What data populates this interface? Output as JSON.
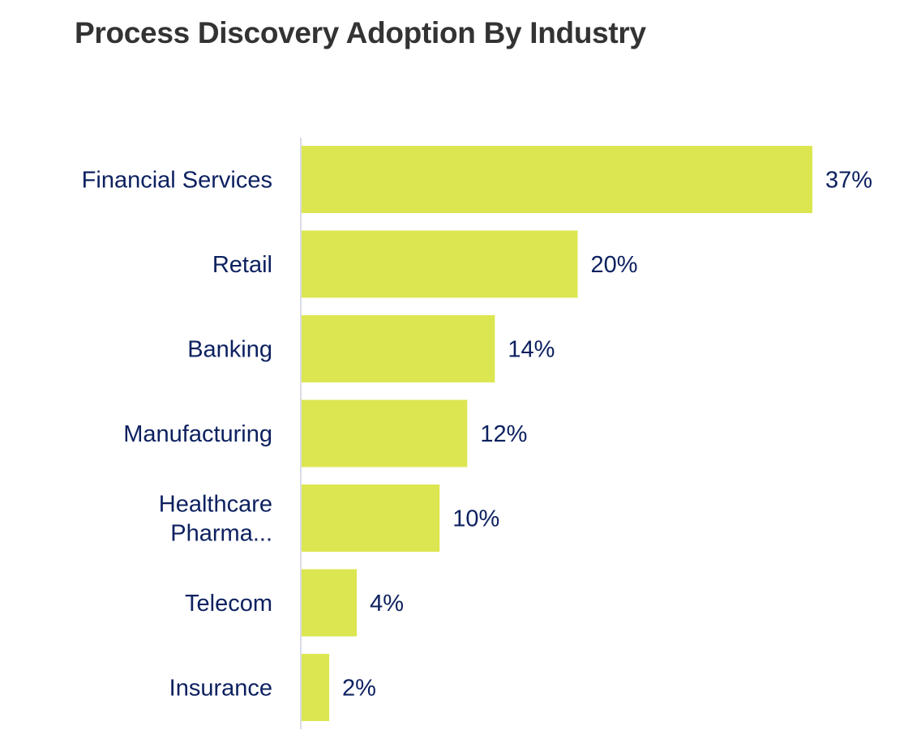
{
  "chart_data": {
    "type": "bar",
    "orientation": "horizontal",
    "title": "Process Discovery Adoption By Industry",
    "categories": [
      "Financial Services",
      "Retail",
      "Banking",
      "Manufacturing",
      "Healthcare\nPharma...",
      "Telecom",
      "Insurance"
    ],
    "values": [
      37,
      20,
      14,
      12,
      10,
      4,
      2
    ],
    "value_labels": [
      "37%",
      "20%",
      "14%",
      "12%",
      "10%",
      "4%",
      "2%"
    ],
    "xlabel": "",
    "ylabel": "",
    "xlim": [
      0,
      37
    ],
    "grid": false,
    "legend": "none",
    "colors": {
      "bar": "#dce651",
      "text": "#0d2160",
      "title": "#333333",
      "axis": "#d9dce6"
    }
  }
}
